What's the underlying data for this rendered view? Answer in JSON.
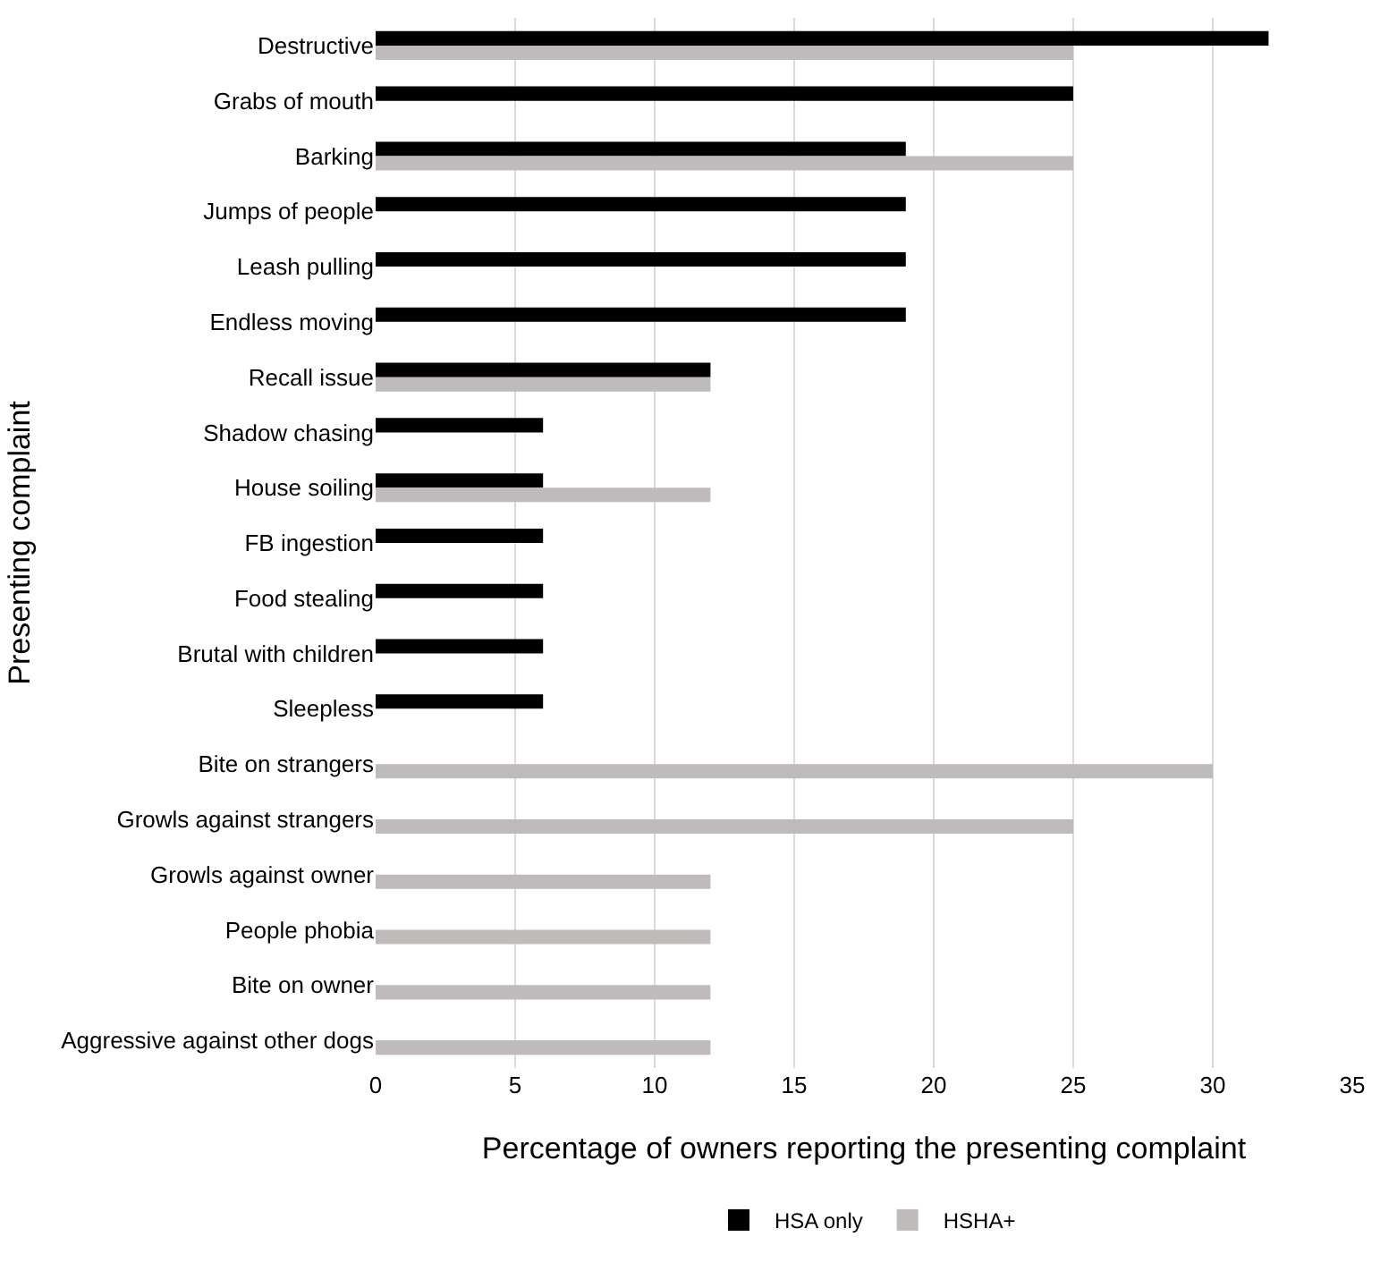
{
  "chart_data": {
    "type": "bar",
    "orientation": "horizontal",
    "xlabel": "Percentage of owners reporting the presenting complaint",
    "ylabel": "Presenting complaint",
    "categories": [
      "Destructive",
      "Grabs of mouth",
      "Barking",
      "Jumps of people",
      "Leash pulling",
      "Endless moving",
      "Recall issue",
      "Shadow chasing",
      "House soiling",
      "FB ingestion",
      "Food stealing",
      "Brutal with children",
      "Sleepless",
      "Bite on strangers",
      "Growls against strangers",
      "Growls against owner",
      "People phobia",
      "Bite on owner",
      "Aggressive against other dogs"
    ],
    "series": [
      {
        "name": "HSA only",
        "color": "#000000",
        "values": [
          32,
          25,
          19,
          19,
          19,
          19,
          12,
          6,
          6,
          6,
          6,
          6,
          6,
          null,
          null,
          null,
          null,
          null,
          null
        ]
      },
      {
        "name": "HSHA+",
        "color": "#bfbbbb",
        "values": [
          25,
          null,
          25,
          null,
          null,
          null,
          12,
          null,
          12,
          null,
          null,
          null,
          null,
          30,
          25,
          12,
          12,
          12,
          12
        ]
      }
    ],
    "xlim": [
      0,
      35
    ],
    "xticks": [
      0,
      5,
      10,
      15,
      20,
      25,
      30,
      35
    ],
    "grid": "x",
    "legend": "bottom"
  }
}
